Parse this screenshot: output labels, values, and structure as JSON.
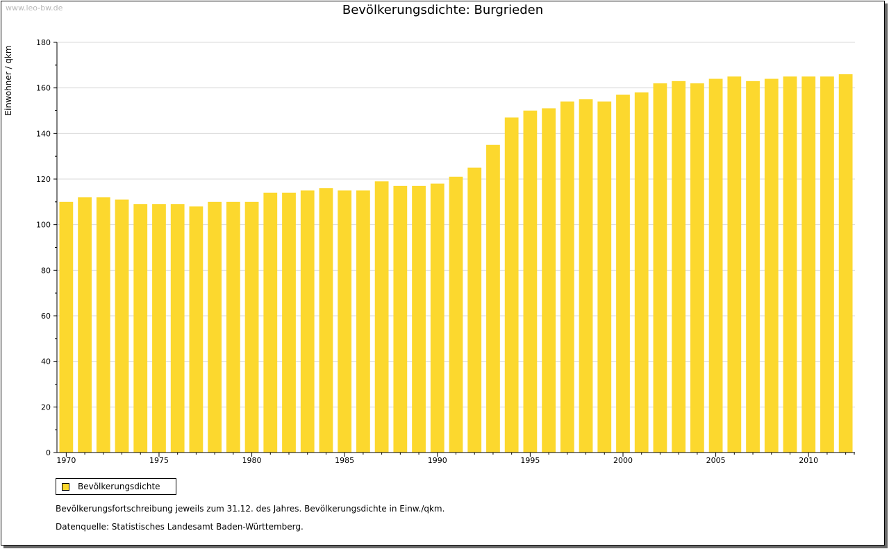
{
  "watermark": "www.leo-bw.de",
  "title": "Bevölkerungsdichte: Burgrieden",
  "colors": {
    "bar": "#fcd82e",
    "grid": "#d9d9d9",
    "axis": "#000000"
  },
  "chart_data": {
    "type": "bar",
    "title": "Bevölkerungsdichte: Burgrieden",
    "xlabel": "",
    "ylabel": "Einwohner / qkm",
    "ylim": [
      0,
      180
    ],
    "yticks": [
      0,
      20,
      40,
      60,
      80,
      100,
      120,
      140,
      160,
      180
    ],
    "xtick_labels": [
      "1970",
      "1975",
      "1980",
      "1985",
      "1990",
      "1995",
      "2000",
      "2005",
      "2010"
    ],
    "grid": true,
    "legend_position": "bottom-left",
    "categories": [
      "1970",
      "1971",
      "1972",
      "1973",
      "1974",
      "1975",
      "1976",
      "1977",
      "1978",
      "1979",
      "1980",
      "1981",
      "1982",
      "1983",
      "1984",
      "1985",
      "1986",
      "1987",
      "1988",
      "1989",
      "1990",
      "1991",
      "1992",
      "1993",
      "1994",
      "1995",
      "1996",
      "1997",
      "1998",
      "1999",
      "2000",
      "2001",
      "2002",
      "2003",
      "2004",
      "2005",
      "2006",
      "2007",
      "2008",
      "2009",
      "2010",
      "2011",
      "2012"
    ],
    "series": [
      {
        "name": "Bevölkerungsdichte",
        "values": [
          110,
          112,
          112,
          111,
          109,
          109,
          109,
          108,
          110,
          110,
          110,
          114,
          114,
          115,
          116,
          115,
          115,
          119,
          117,
          117,
          118,
          121,
          125,
          135,
          147,
          150,
          151,
          154,
          155,
          154,
          157,
          158,
          162,
          163,
          162,
          164,
          165,
          163,
          164,
          165,
          165,
          165,
          166
        ]
      }
    ]
  },
  "legend": {
    "label": "Bevölkerungsdichte"
  },
  "notes": {
    "line1": "Bevölkerungsfortschreibung jeweils zum 31.12. des Jahres. Bevölkerungsdichte in Einw./qkm.",
    "line2": "Datenquelle: Statistisches Landesamt Baden-Württemberg."
  }
}
